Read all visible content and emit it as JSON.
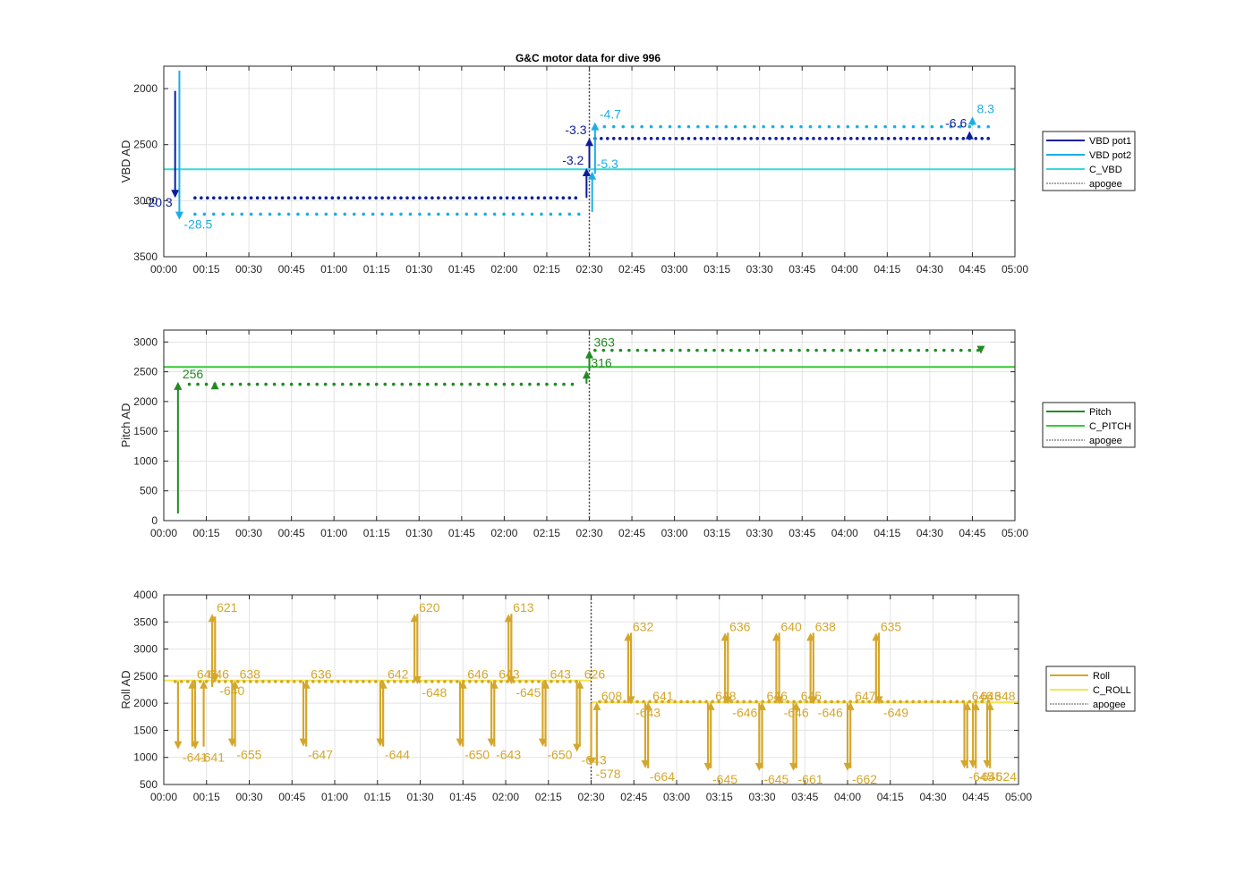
{
  "figure_title": "G&C motor data for dive 996",
  "colors": {
    "vbd_pot1": "#0a1e9c",
    "vbd_pot2": "#1aaee6",
    "c_vbd": "#36d9d9",
    "pitch": "#228b22",
    "c_pitch": "#33cc33",
    "roll": "#d4a72c",
    "c_roll": "#f2e64d",
    "apogee": "#555555",
    "grid": "#e3e3e3"
  },
  "chart_data": [
    {
      "type": "line",
      "title": "G&C motor data for dive 996",
      "ylabel": "VBD AD",
      "ylim": [
        1800,
        3500
      ],
      "y_reversed": true,
      "xlim_minutes": [
        0,
        300
      ],
      "xticks": [
        "00:00",
        "00:15",
        "00:30",
        "00:45",
        "01:00",
        "01:15",
        "01:30",
        "01:45",
        "02:00",
        "02:15",
        "02:30",
        "02:45",
        "03:00",
        "03:15",
        "03:30",
        "03:45",
        "04:00",
        "04:15",
        "04:30",
        "04:45",
        "05:00"
      ],
      "yticks": [
        2000,
        2500,
        3000,
        3500
      ],
      "legend": [
        "VBD pot1",
        "VBD pot2",
        "C_VBD",
        "apogee"
      ],
      "legend_position": "outside-right",
      "grid": true,
      "apogee_x": 150,
      "reference_lines": [
        {
          "name": "C_VBD",
          "y": 2720
        }
      ],
      "series": [
        {
          "name": "VBD pot1",
          "y": 2975,
          "x_start": 11,
          "x_end": 147,
          "step": 2.2
        },
        {
          "name": "VBD pot1",
          "y": 2445,
          "x_start": 152,
          "x_end": 292,
          "step": 2.2
        },
        {
          "name": "VBD pot2",
          "y": 3120,
          "x_start": 11,
          "x_end": 147,
          "step": 3.3
        },
        {
          "name": "VBD pot2",
          "y": 2340,
          "x_start": 152,
          "x_end": 292,
          "step": 3.3
        }
      ],
      "moves": [
        {
          "series": "VBD pot1",
          "x": 4,
          "from": 2020,
          "to": 2975,
          "label": "-20.3",
          "side": "left"
        },
        {
          "series": "VBD pot2",
          "x": 5.5,
          "from": 1840,
          "to": 3170,
          "label": "-28.5",
          "side": "right"
        },
        {
          "series": "VBD pot1",
          "x": 149,
          "from": 2975,
          "to": 2710,
          "label": "-3.2",
          "side": "left"
        },
        {
          "series": "VBD pot1",
          "x": 150,
          "from": 2710,
          "to": 2440,
          "label": "-3.3",
          "side": "left"
        },
        {
          "series": "VBD pot2",
          "x": 151,
          "from": 3100,
          "to": 2740,
          "label": "-5.3",
          "side": "right"
        },
        {
          "series": "VBD pot2",
          "x": 152,
          "from": 2760,
          "to": 2300,
          "label": "-4.7",
          "side": "right"
        },
        {
          "series": "VBD pot1",
          "x": 284,
          "from": 2440,
          "to": 2380,
          "label": "-6.6",
          "side": "left"
        },
        {
          "series": "VBD pot2",
          "x": 285,
          "from": 2330,
          "to": 2250,
          "label": "8.3",
          "side": "right"
        }
      ]
    },
    {
      "type": "line",
      "ylabel": "Pitch AD",
      "ylim": [
        0,
        3200
      ],
      "y_reversed": false,
      "xlim_minutes": [
        0,
        300
      ],
      "xticks": [
        "00:00",
        "00:15",
        "00:30",
        "00:45",
        "01:00",
        "01:15",
        "01:30",
        "01:45",
        "02:00",
        "02:15",
        "02:30",
        "02:45",
        "03:00",
        "03:15",
        "03:30",
        "03:45",
        "04:00",
        "04:15",
        "04:30",
        "04:45",
        "05:00"
      ],
      "yticks": [
        0,
        500,
        1000,
        1500,
        2000,
        2500,
        3000
      ],
      "legend": [
        "Pitch",
        "C_PITCH",
        "apogee"
      ],
      "legend_position": "outside-right",
      "grid": true,
      "apogee_x": 150,
      "reference_lines": [
        {
          "name": "C_PITCH",
          "y": 2580
        }
      ],
      "series": [
        {
          "name": "Pitch",
          "y": 2290,
          "x_start": 9,
          "x_end": 145,
          "step": 3.0
        },
        {
          "name": "Pitch",
          "y": 2860,
          "x_start": 152,
          "x_end": 288,
          "step": 3.0
        }
      ],
      "moves": [
        {
          "series": "Pitch",
          "x": 5,
          "from": 120,
          "to": 2330,
          "label": "256",
          "side": "right"
        },
        {
          "series": "Pitch",
          "x": 18,
          "from": 2260,
          "to": 2340,
          "label": "",
          "side": "right"
        },
        {
          "series": "Pitch",
          "x": 149,
          "from": 2300,
          "to": 2520,
          "label": "316",
          "side": "right"
        },
        {
          "series": "Pitch",
          "x": 150,
          "from": 2520,
          "to": 2860,
          "label": "363",
          "side": "right"
        },
        {
          "series": "Pitch",
          "x": 288,
          "from": 2900,
          "to": 2800,
          "label": "",
          "side": "right"
        }
      ]
    },
    {
      "type": "line",
      "ylabel": "Roll AD",
      "ylim": [
        500,
        4000
      ],
      "y_reversed": false,
      "xlim_minutes": [
        0,
        300
      ],
      "xticks": [
        "00:00",
        "00:15",
        "00:30",
        "00:45",
        "01:00",
        "01:15",
        "01:30",
        "01:45",
        "02:00",
        "02:15",
        "02:30",
        "02:45",
        "03:00",
        "03:15",
        "03:30",
        "03:45",
        "04:00",
        "04:15",
        "04:30",
        "04:45",
        "05:00"
      ],
      "yticks": [
        500,
        1000,
        1500,
        2000,
        2500,
        3000,
        3500,
        4000
      ],
      "legend": [
        "Roll",
        "C_ROLL",
        "apogee"
      ],
      "legend_position": "outside-right",
      "grid": true,
      "apogee_x": 150,
      "reference_lines": [
        {
          "name": "C_ROLL",
          "y": 2420,
          "x_start": 0,
          "x_end": 150
        },
        {
          "name": "C_ROLL",
          "y": 2020,
          "x_start": 150,
          "x_end": 300
        }
      ],
      "series": [
        {
          "name": "Roll",
          "y": 2400,
          "x_start": 4,
          "x_end": 145,
          "step": 2.2
        },
        {
          "name": "Roll",
          "y": 2030,
          "x_start": 153,
          "x_end": 290,
          "step": 2.2
        }
      ],
      "moves": [
        {
          "x": 5,
          "from": 2400,
          "to": 1150,
          "label": "-641"
        },
        {
          "x": 10,
          "from": 1200,
          "to": 2420,
          "label": "646"
        },
        {
          "x": 11,
          "from": 2400,
          "to": 1150,
          "label": "-641"
        },
        {
          "x": 14,
          "from": 1200,
          "to": 2420,
          "label": "646"
        },
        {
          "x": 17,
          "from": 2300,
          "to": 3650,
          "label": "621"
        },
        {
          "x": 18,
          "from": 3600,
          "to": 2380,
          "label": "-640"
        },
        {
          "x": 24,
          "from": 2400,
          "to": 1200,
          "label": "-655"
        },
        {
          "x": 25,
          "from": 1200,
          "to": 2420,
          "label": "638"
        },
        {
          "x": 49,
          "from": 2400,
          "to": 1200,
          "label": "-647"
        },
        {
          "x": 50,
          "from": 1200,
          "to": 2420,
          "label": "636"
        },
        {
          "x": 76,
          "from": 2400,
          "to": 1200,
          "label": "-644"
        },
        {
          "x": 77,
          "from": 1200,
          "to": 2420,
          "label": "642"
        },
        {
          "x": 88,
          "from": 2400,
          "to": 3650,
          "label": "620"
        },
        {
          "x": 89,
          "from": 3650,
          "to": 2350,
          "label": "-648"
        },
        {
          "x": 104,
          "from": 2400,
          "to": 1200,
          "label": "-650"
        },
        {
          "x": 105,
          "from": 1200,
          "to": 2420,
          "label": "646"
        },
        {
          "x": 115,
          "from": 2400,
          "to": 1200,
          "label": "-643"
        },
        {
          "x": 116,
          "from": 1200,
          "to": 2420,
          "label": "643"
        },
        {
          "x": 121,
          "from": 2400,
          "to": 3650,
          "label": "613"
        },
        {
          "x": 122,
          "from": 3650,
          "to": 2350,
          "label": "-645"
        },
        {
          "x": 133,
          "from": 2400,
          "to": 1200,
          "label": "-650"
        },
        {
          "x": 134,
          "from": 1200,
          "to": 2420,
          "label": "643"
        },
        {
          "x": 145,
          "from": 2400,
          "to": 1100,
          "label": "-643"
        },
        {
          "x": 146,
          "from": 1200,
          "to": 2420,
          "label": "626"
        },
        {
          "x": 150,
          "from": 2000,
          "to": 850,
          "label": "-578"
        },
        {
          "x": 152,
          "from": 850,
          "to": 2020,
          "label": "608"
        },
        {
          "x": 163,
          "from": 2000,
          "to": 3300,
          "label": "632"
        },
        {
          "x": 164,
          "from": 3300,
          "to": 1980,
          "label": "-643"
        },
        {
          "x": 169,
          "from": 2000,
          "to": 800,
          "label": "-664"
        },
        {
          "x": 170,
          "from": 800,
          "to": 2020,
          "label": "641"
        },
        {
          "x": 191,
          "from": 2000,
          "to": 750,
          "label": "-645"
        },
        {
          "x": 192,
          "from": 800,
          "to": 2020,
          "label": "648"
        },
        {
          "x": 197,
          "from": 2000,
          "to": 3300,
          "label": "636"
        },
        {
          "x": 198,
          "from": 3300,
          "to": 1980,
          "label": "-646"
        },
        {
          "x": 209,
          "from": 2000,
          "to": 750,
          "label": "-645"
        },
        {
          "x": 210,
          "from": 800,
          "to": 2020,
          "label": "646"
        },
        {
          "x": 215,
          "from": 2000,
          "to": 3300,
          "label": "640"
        },
        {
          "x": 216,
          "from": 3300,
          "to": 1980,
          "label": "-646"
        },
        {
          "x": 221,
          "from": 2000,
          "to": 750,
          "label": "-661"
        },
        {
          "x": 222,
          "from": 800,
          "to": 2020,
          "label": "645"
        },
        {
          "x": 227,
          "from": 2000,
          "to": 3300,
          "label": "638"
        },
        {
          "x": 228,
          "from": 3300,
          "to": 1980,
          "label": "-646"
        },
        {
          "x": 240,
          "from": 2000,
          "to": 750,
          "label": "-662"
        },
        {
          "x": 241,
          "from": 800,
          "to": 2020,
          "label": "647"
        },
        {
          "x": 250,
          "from": 2000,
          "to": 3300,
          "label": "635"
        },
        {
          "x": 251,
          "from": 3300,
          "to": 1980,
          "label": "-649"
        },
        {
          "x": 281,
          "from": 2000,
          "to": 800,
          "label": "-645"
        },
        {
          "x": 282,
          "from": 800,
          "to": 2020,
          "label": "646"
        },
        {
          "x": 284,
          "from": 2000,
          "to": 800,
          "label": "-645"
        },
        {
          "x": 285,
          "from": 800,
          "to": 2020,
          "label": "643"
        },
        {
          "x": 289,
          "from": 2000,
          "to": 800,
          "label": "-624"
        },
        {
          "x": 290,
          "from": 800,
          "to": 2020,
          "label": "648"
        }
      ]
    }
  ]
}
